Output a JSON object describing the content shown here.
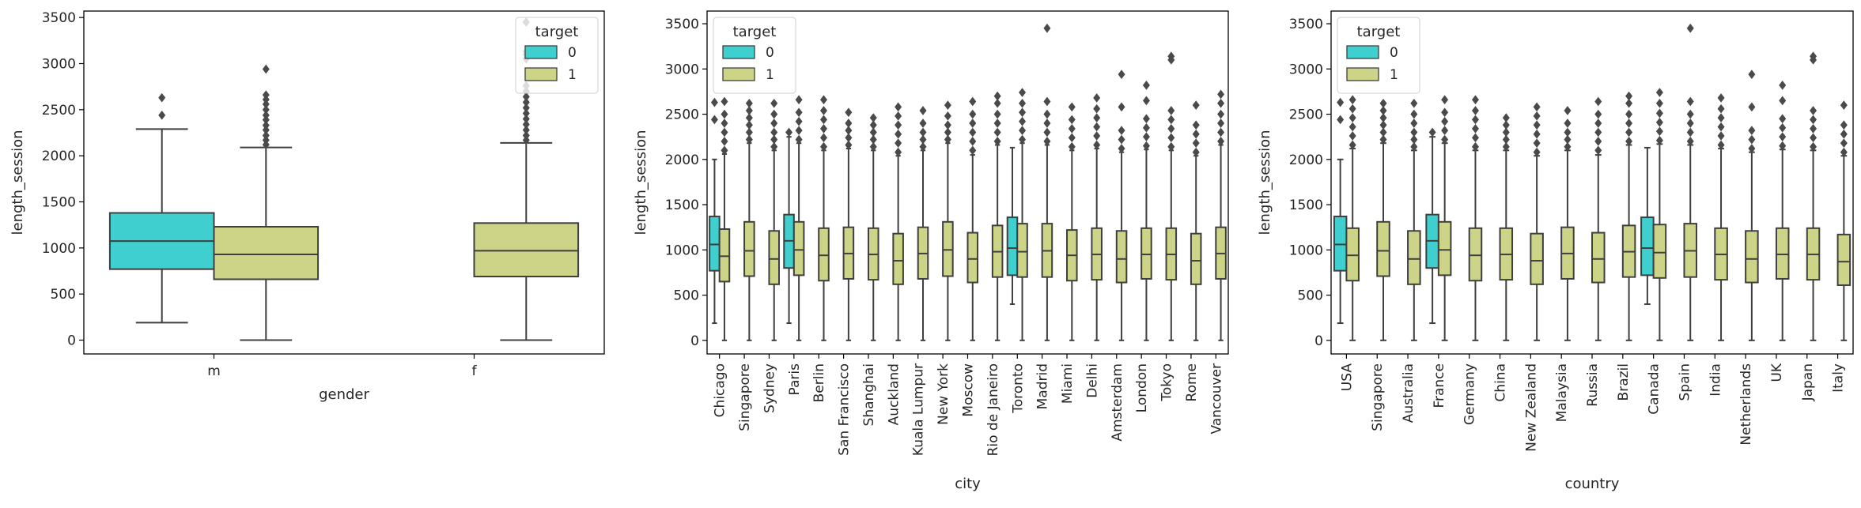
{
  "colors": {
    "target_0": "#40cfcf",
    "target_1": "#cdd487",
    "line": "#3f3f3f",
    "flier": "#4a4a4a",
    "axis": "#000000"
  },
  "chart_data": [
    {
      "type": "box",
      "xlabel": "gender",
      "ylabel": "length_session",
      "ylim": [
        -150,
        3570
      ],
      "yticks": [
        0,
        500,
        1000,
        1500,
        2000,
        2500,
        3000,
        3500
      ],
      "categories": [
        "m",
        "f"
      ],
      "legend": {
        "title": "target",
        "entries": [
          "0",
          "1"
        ],
        "position": "top-right"
      },
      "boxes": [
        {
          "category": "m",
          "target": "0",
          "whisker_low": 190,
          "q1": 770,
          "median": 1075,
          "q3": 1380,
          "whisker_high": 2290,
          "fliers": [
            2440,
            2630
          ]
        },
        {
          "category": "m",
          "target": "1",
          "whisker_low": 0,
          "q1": 660,
          "median": 930,
          "q3": 1230,
          "whisker_high": 2090,
          "fliers": [
            2120,
            2170,
            2220,
            2280,
            2330,
            2390,
            2440,
            2500,
            2560,
            2610,
            2660,
            2940
          ]
        },
        {
          "category": "f",
          "target": "1",
          "whisker_low": 0,
          "q1": 690,
          "median": 970,
          "q3": 1270,
          "whisker_high": 2140,
          "fliers": [
            2170,
            2220,
            2280,
            2340,
            2400,
            2460,
            2520,
            2580,
            2640,
            2700,
            2760,
            3050,
            3100,
            3130,
            3450
          ]
        }
      ]
    },
    {
      "type": "box",
      "xlabel": "city",
      "ylabel": "length_session",
      "ylim": [
        -150,
        3640
      ],
      "yticks": [
        0,
        500,
        1000,
        1500,
        2000,
        2500,
        3000,
        3500
      ],
      "categories": [
        "Chicago",
        "Singapore",
        "Sydney",
        "Paris",
        "Berlin",
        "San Francisco",
        "Shanghai",
        "Auckland",
        "Kuala Lumpur",
        "New York",
        "Moscow",
        "Rio de Janeiro",
        "Toronto",
        "Madrid",
        "Miami",
        "Delhi",
        "Amsterdam",
        "London",
        "Tokyo",
        "Rome",
        "Vancouver"
      ],
      "legend": {
        "title": "target",
        "entries": [
          "0",
          "1"
        ],
        "position": "top-left"
      },
      "boxes": [
        {
          "category": "Chicago",
          "target": "0",
          "whisker_low": 190,
          "q1": 770,
          "median": 1060,
          "q3": 1370,
          "whisker_high": 2000,
          "fliers": [
            2440,
            2630
          ]
        },
        {
          "category": "Chicago",
          "target": "1",
          "whisker_low": 0,
          "q1": 650,
          "median": 930,
          "q3": 1230,
          "whisker_high": 2060,
          "fliers": [
            2100,
            2200,
            2300,
            2400,
            2500,
            2640
          ]
        },
        {
          "category": "Singapore",
          "target": "1",
          "whisker_low": 0,
          "q1": 710,
          "median": 990,
          "q3": 1310,
          "whisker_high": 2180,
          "fliers": [
            2220,
            2300,
            2380,
            2460,
            2540,
            2620
          ]
        },
        {
          "category": "Sydney",
          "target": "1",
          "whisker_low": 0,
          "q1": 620,
          "median": 900,
          "q3": 1210,
          "whisker_high": 2100,
          "fliers": [
            2140,
            2220,
            2300,
            2400,
            2500,
            2620
          ]
        },
        {
          "category": "Paris",
          "target": "0",
          "whisker_low": 190,
          "q1": 800,
          "median": 1100,
          "q3": 1390,
          "whisker_high": 2250,
          "fliers": [
            2300
          ]
        },
        {
          "category": "Paris",
          "target": "1",
          "whisker_low": 0,
          "q1": 720,
          "median": 1000,
          "q3": 1310,
          "whisker_high": 2180,
          "fliers": [
            2220,
            2320,
            2420,
            2520,
            2660
          ]
        },
        {
          "category": "Berlin",
          "target": "1",
          "whisker_low": 0,
          "q1": 660,
          "median": 940,
          "q3": 1240,
          "whisker_high": 2100,
          "fliers": [
            2140,
            2240,
            2340,
            2440,
            2540,
            2660
          ]
        },
        {
          "category": "San Francisco",
          "target": "1",
          "whisker_low": 0,
          "q1": 680,
          "median": 960,
          "q3": 1250,
          "whisker_high": 2120,
          "fliers": [
            2160,
            2240,
            2320,
            2400,
            2520
          ]
        },
        {
          "category": "Shanghai",
          "target": "1",
          "whisker_low": 0,
          "q1": 670,
          "median": 950,
          "q3": 1240,
          "whisker_high": 2100,
          "fliers": [
            2140,
            2220,
            2300,
            2380,
            2460
          ]
        },
        {
          "category": "Auckland",
          "target": "1",
          "whisker_low": 0,
          "q1": 620,
          "median": 880,
          "q3": 1180,
          "whisker_high": 2040,
          "fliers": [
            2080,
            2180,
            2280,
            2380,
            2480,
            2580
          ]
        },
        {
          "category": "Kuala Lumpur",
          "target": "1",
          "whisker_low": 0,
          "q1": 680,
          "median": 960,
          "q3": 1250,
          "whisker_high": 2100,
          "fliers": [
            2140,
            2220,
            2300,
            2400,
            2540
          ]
        },
        {
          "category": "New York",
          "target": "1",
          "whisker_low": 0,
          "q1": 710,
          "median": 1000,
          "q3": 1310,
          "whisker_high": 2180,
          "fliers": [
            2220,
            2300,
            2380,
            2480,
            2600
          ]
        },
        {
          "category": "Moscow",
          "target": "1",
          "whisker_low": 0,
          "q1": 640,
          "median": 900,
          "q3": 1190,
          "whisker_high": 2050,
          "fliers": [
            2100,
            2200,
            2300,
            2400,
            2500,
            2640
          ]
        },
        {
          "category": "Rio de Janeiro",
          "target": "1",
          "whisker_low": 0,
          "q1": 700,
          "median": 980,
          "q3": 1270,
          "whisker_high": 2160,
          "fliers": [
            2200,
            2300,
            2400,
            2500,
            2620,
            2700
          ]
        },
        {
          "category": "Toronto",
          "target": "0",
          "whisker_low": 400,
          "q1": 720,
          "median": 1020,
          "q3": 1360,
          "whisker_high": 2130,
          "fliers": []
        },
        {
          "category": "Toronto",
          "target": "1",
          "whisker_low": 0,
          "q1": 700,
          "median": 980,
          "q3": 1290,
          "whisker_high": 2180,
          "fliers": [
            2220,
            2320,
            2420,
            2520,
            2620,
            2740
          ]
        },
        {
          "category": "Madrid",
          "target": "1",
          "whisker_low": 0,
          "q1": 700,
          "median": 990,
          "q3": 1290,
          "whisker_high": 2160,
          "fliers": [
            2200,
            2300,
            2400,
            2500,
            2640,
            3450
          ]
        },
        {
          "category": "Miami",
          "target": "1",
          "whisker_low": 0,
          "q1": 660,
          "median": 940,
          "q3": 1220,
          "whisker_high": 2100,
          "fliers": [
            2140,
            2240,
            2340,
            2440,
            2580
          ]
        },
        {
          "category": "Delhi",
          "target": "1",
          "whisker_low": 0,
          "q1": 670,
          "median": 950,
          "q3": 1240,
          "whisker_high": 2120,
          "fliers": [
            2160,
            2260,
            2360,
            2460,
            2560,
            2680
          ]
        },
        {
          "category": "Amsterdam",
          "target": "1",
          "whisker_low": 0,
          "q1": 640,
          "median": 900,
          "q3": 1210,
          "whisker_high": 2080,
          "fliers": [
            2120,
            2220,
            2320,
            2580,
            2940
          ]
        },
        {
          "category": "London",
          "target": "1",
          "whisker_low": 0,
          "q1": 680,
          "median": 950,
          "q3": 1240,
          "whisker_high": 2110,
          "fliers": [
            2150,
            2250,
            2350,
            2450,
            2650,
            2820
          ]
        },
        {
          "category": "Tokyo",
          "target": "1",
          "whisker_low": 0,
          "q1": 670,
          "median": 950,
          "q3": 1240,
          "whisker_high": 2100,
          "fliers": [
            2140,
            2240,
            2340,
            2440,
            2540,
            3100,
            3140
          ]
        },
        {
          "category": "Rome",
          "target": "1",
          "whisker_low": 0,
          "q1": 620,
          "median": 880,
          "q3": 1180,
          "whisker_high": 2040,
          "fliers": [
            2080,
            2180,
            2280,
            2380,
            2600
          ]
        },
        {
          "category": "Vancouver",
          "target": "1",
          "whisker_low": 0,
          "q1": 680,
          "median": 960,
          "q3": 1250,
          "whisker_high": 2160,
          "fliers": [
            2200,
            2300,
            2400,
            2500,
            2620,
            2720
          ]
        }
      ]
    },
    {
      "type": "box",
      "xlabel": "country",
      "ylabel": "length_session",
      "ylim": [
        -150,
        3640
      ],
      "yticks": [
        0,
        500,
        1000,
        1500,
        2000,
        2500,
        3000,
        3500
      ],
      "categories": [
        "USA",
        "Singapore",
        "Australia",
        "France",
        "Germany",
        "China",
        "New Zealand",
        "Malaysia",
        "Russia",
        "Brazil",
        "Canada",
        "Spain",
        "India",
        "Netherlands",
        "UK",
        "Japan",
        "Italy"
      ],
      "legend": {
        "title": "target",
        "entries": [
          "0",
          "1"
        ],
        "position": "top-left"
      },
      "boxes": [
        {
          "category": "USA",
          "target": "0",
          "whisker_low": 190,
          "q1": 770,
          "median": 1060,
          "q3": 1370,
          "whisker_high": 2000,
          "fliers": [
            2440,
            2630
          ]
        },
        {
          "category": "USA",
          "target": "1",
          "whisker_low": 0,
          "q1": 660,
          "median": 940,
          "q3": 1240,
          "whisker_high": 2120,
          "fliers": [
            2160,
            2260,
            2360,
            2460,
            2560,
            2660
          ]
        },
        {
          "category": "Singapore",
          "target": "1",
          "whisker_low": 0,
          "q1": 710,
          "median": 990,
          "q3": 1310,
          "whisker_high": 2180,
          "fliers": [
            2220,
            2300,
            2380,
            2460,
            2540,
            2620
          ]
        },
        {
          "category": "Australia",
          "target": "1",
          "whisker_low": 0,
          "q1": 620,
          "median": 900,
          "q3": 1210,
          "whisker_high": 2100,
          "fliers": [
            2140,
            2220,
            2300,
            2400,
            2500,
            2620
          ]
        },
        {
          "category": "France",
          "target": "0",
          "whisker_low": 190,
          "q1": 800,
          "median": 1100,
          "q3": 1390,
          "whisker_high": 2250,
          "fliers": [
            2300
          ]
        },
        {
          "category": "France",
          "target": "1",
          "whisker_low": 0,
          "q1": 720,
          "median": 1000,
          "q3": 1310,
          "whisker_high": 2180,
          "fliers": [
            2220,
            2320,
            2420,
            2520,
            2660
          ]
        },
        {
          "category": "Germany",
          "target": "1",
          "whisker_low": 0,
          "q1": 660,
          "median": 940,
          "q3": 1240,
          "whisker_high": 2100,
          "fliers": [
            2140,
            2240,
            2340,
            2440,
            2540,
            2660
          ]
        },
        {
          "category": "China",
          "target": "1",
          "whisker_low": 0,
          "q1": 670,
          "median": 950,
          "q3": 1240,
          "whisker_high": 2100,
          "fliers": [
            2140,
            2220,
            2300,
            2380,
            2460
          ]
        },
        {
          "category": "New Zealand",
          "target": "1",
          "whisker_low": 0,
          "q1": 620,
          "median": 880,
          "q3": 1180,
          "whisker_high": 2040,
          "fliers": [
            2080,
            2180,
            2280,
            2380,
            2480,
            2580
          ]
        },
        {
          "category": "Malaysia",
          "target": "1",
          "whisker_low": 0,
          "q1": 680,
          "median": 960,
          "q3": 1250,
          "whisker_high": 2100,
          "fliers": [
            2140,
            2220,
            2300,
            2400,
            2540
          ]
        },
        {
          "category": "Russia",
          "target": "1",
          "whisker_low": 0,
          "q1": 640,
          "median": 900,
          "q3": 1190,
          "whisker_high": 2050,
          "fliers": [
            2100,
            2200,
            2300,
            2400,
            2500,
            2640
          ]
        },
        {
          "category": "Brazil",
          "target": "1",
          "whisker_low": 0,
          "q1": 700,
          "median": 980,
          "q3": 1270,
          "whisker_high": 2160,
          "fliers": [
            2200,
            2300,
            2400,
            2500,
            2620,
            2700
          ]
        },
        {
          "category": "Canada",
          "target": "0",
          "whisker_low": 400,
          "q1": 720,
          "median": 1020,
          "q3": 1360,
          "whisker_high": 2130,
          "fliers": []
        },
        {
          "category": "Canada",
          "target": "1",
          "whisker_low": 0,
          "q1": 690,
          "median": 970,
          "q3": 1280,
          "whisker_high": 2170,
          "fliers": [
            2210,
            2310,
            2410,
            2510,
            2620,
            2740
          ]
        },
        {
          "category": "Spain",
          "target": "1",
          "whisker_low": 0,
          "q1": 700,
          "median": 990,
          "q3": 1290,
          "whisker_high": 2160,
          "fliers": [
            2200,
            2300,
            2400,
            2500,
            2640,
            3450
          ]
        },
        {
          "category": "India",
          "target": "1",
          "whisker_low": 0,
          "q1": 670,
          "median": 950,
          "q3": 1240,
          "whisker_high": 2120,
          "fliers": [
            2160,
            2260,
            2360,
            2460,
            2560,
            2680
          ]
        },
        {
          "category": "Netherlands",
          "target": "1",
          "whisker_low": 0,
          "q1": 640,
          "median": 900,
          "q3": 1210,
          "whisker_high": 2080,
          "fliers": [
            2120,
            2220,
            2320,
            2580,
            2940
          ]
        },
        {
          "category": "UK",
          "target": "1",
          "whisker_low": 0,
          "q1": 680,
          "median": 950,
          "q3": 1240,
          "whisker_high": 2110,
          "fliers": [
            2150,
            2250,
            2350,
            2450,
            2650,
            2820
          ]
        },
        {
          "category": "Japan",
          "target": "1",
          "whisker_low": 0,
          "q1": 670,
          "median": 950,
          "q3": 1240,
          "whisker_high": 2100,
          "fliers": [
            2140,
            2240,
            2340,
            2440,
            2540,
            3100,
            3140
          ]
        },
        {
          "category": "Italy",
          "target": "1",
          "whisker_low": 0,
          "q1": 610,
          "median": 870,
          "q3": 1170,
          "whisker_high": 2040,
          "fliers": [
            2080,
            2180,
            2280,
            2380,
            2600
          ]
        }
      ]
    }
  ]
}
